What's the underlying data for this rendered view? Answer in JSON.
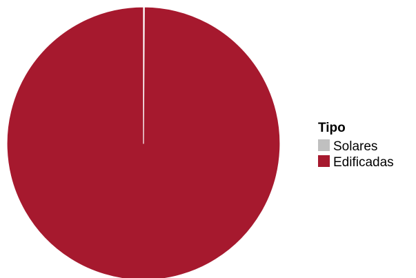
{
  "chart_data": {
    "type": "pie",
    "title": "",
    "legend_title": "Tipo",
    "legend_position": "right",
    "start_angle": "12 o'clock",
    "direction": "clockwise",
    "series": [
      {
        "name": "Solares",
        "value": 0.1,
        "color": "#C0C0C0"
      },
      {
        "name": "Edificadas",
        "value": 99.9,
        "color": "#A6192E"
      }
    ],
    "slice_separator_color": "#FFFFFF"
  }
}
